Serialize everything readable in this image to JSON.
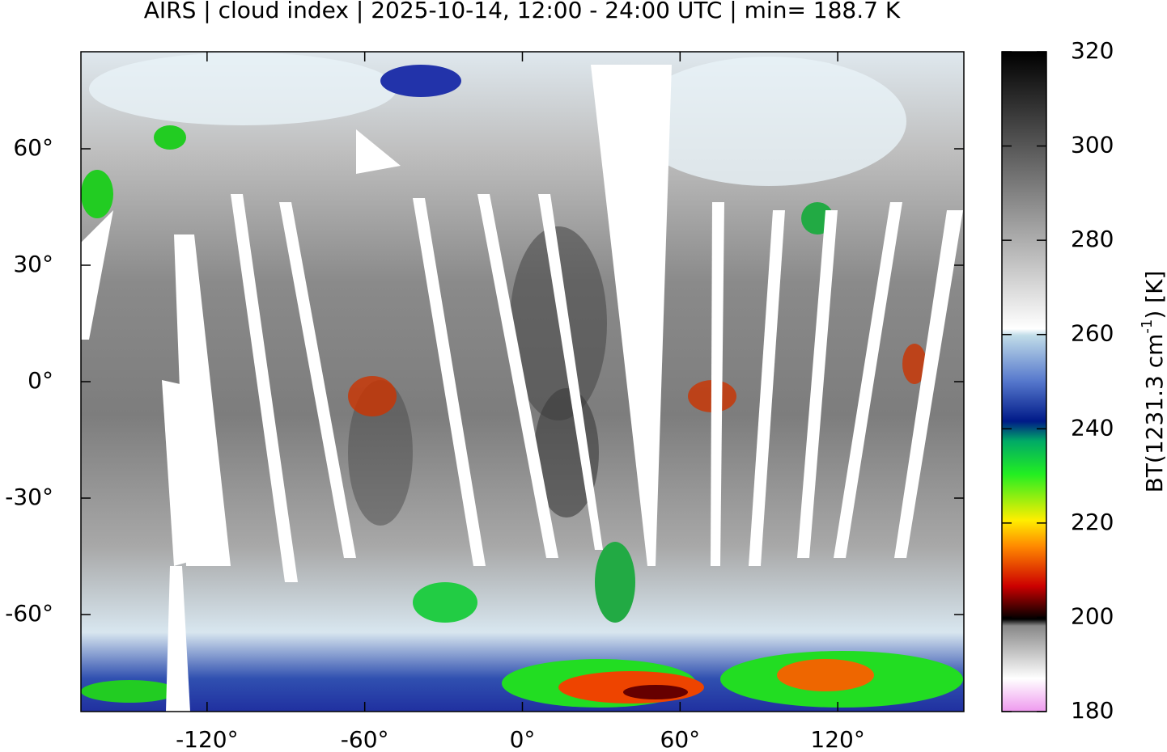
{
  "chart_data": {
    "type": "map",
    "title": "AIRS | cloud index | 2025-10-14, 12:00 - 24:00 UTC | min= 188.7 K",
    "xlim": [
      -168,
      168
    ],
    "ylim": [
      -85,
      85
    ],
    "xticks": [
      {
        "value": -120,
        "label": "-120°"
      },
      {
        "value": -60,
        "label": "-60°"
      },
      {
        "value": 0,
        "label": "0°"
      },
      {
        "value": 60,
        "label": "60°"
      },
      {
        "value": 120,
        "label": "120°"
      }
    ],
    "yticks": [
      {
        "value": 60,
        "label": "60°"
      },
      {
        "value": 30,
        "label": "30°"
      },
      {
        "value": 0,
        "label": "0°"
      },
      {
        "value": -30,
        "label": "-30°"
      },
      {
        "value": -60,
        "label": "-60°"
      }
    ],
    "colorbar": {
      "label": "BT(1231.3 cm",
      "label_sup": "-1",
      "label_end": ") [K]",
      "lim": [
        180,
        320
      ],
      "ticks": [
        180,
        200,
        220,
        240,
        260,
        280,
        300,
        320
      ]
    }
  }
}
